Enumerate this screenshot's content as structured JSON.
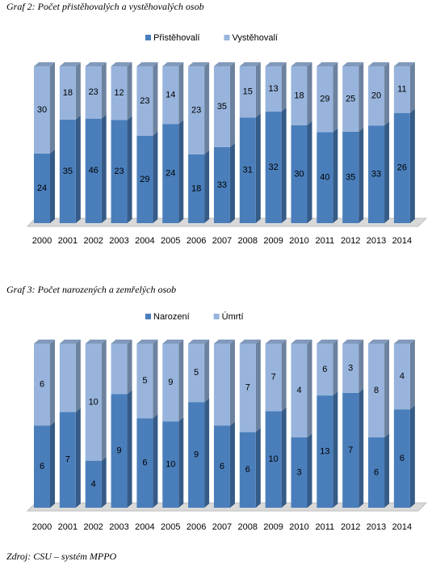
{
  "chart_data": [
    {
      "type": "bar",
      "stacking": "percent",
      "title": "Graf 2: Počet přistěhovalých a vystěhovalých osob",
      "categories": [
        "2000",
        "2001",
        "2002",
        "2003",
        "2004",
        "2005",
        "2006",
        "2007",
        "2008",
        "2009",
        "2010",
        "2011",
        "2012",
        "2013",
        "2014"
      ],
      "legend": "top",
      "series": [
        {
          "name": "Přistěhovalí",
          "color": "#4a7ebb",
          "values": [
            24,
            35,
            46,
            23,
            29,
            24,
            18,
            33,
            31,
            32,
            30,
            40,
            35,
            33,
            26
          ]
        },
        {
          "name": "Vystěhovalí",
          "color": "#98b4dc",
          "values": [
            30,
            18,
            23,
            12,
            23,
            14,
            23,
            35,
            15,
            13,
            18,
            29,
            25,
            20,
            11
          ]
        }
      ]
    },
    {
      "type": "bar",
      "stacking": "percent",
      "title": "Graf 3: Počet narozených a zemřelých osob",
      "categories": [
        "2000",
        "2001",
        "2002",
        "2003",
        "2004",
        "2005",
        "2006",
        "2007",
        "2008",
        "2009",
        "2010",
        "2011",
        "2012",
        "2013",
        "2014"
      ],
      "legend": "top",
      "series": [
        {
          "name": "Narození",
          "color": "#4a7ebb",
          "values": [
            6,
            7,
            4,
            9,
            6,
            10,
            9,
            6,
            6,
            10,
            3,
            13,
            7,
            6,
            6
          ]
        },
        {
          "name": "Úmrtí",
          "color": "#98b4dc",
          "values": [
            6,
            5,
            10,
            4,
            5,
            9,
            5,
            6,
            7,
            7,
            4,
            6,
            3,
            8,
            4
          ],
          "value_labels": [
            "6",
            null,
            "10",
            null,
            "5",
            "9",
            "5",
            null,
            "7",
            "7",
            "4",
            "6",
            "3",
            "8",
            "4"
          ]
        }
      ]
    }
  ],
  "footer": "Zdroj: CSU – systém MPPO"
}
